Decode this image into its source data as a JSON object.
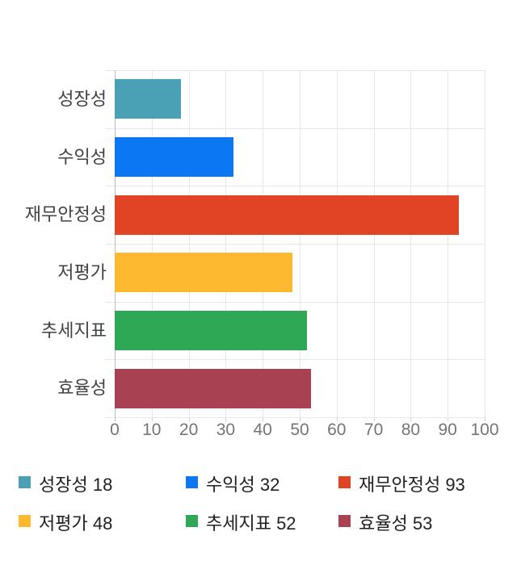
{
  "chart_data": {
    "type": "bar",
    "orientation": "horizontal",
    "title": "",
    "xlabel": "",
    "ylabel": "",
    "categories": [
      "성장성",
      "수익성",
      "재무안정성",
      "저평가",
      "추세지표",
      "효율성"
    ],
    "values": [
      18,
      32,
      93,
      48,
      52,
      53
    ],
    "colors": [
      "#4AA0B5",
      "#0B77F3",
      "#E04425",
      "#FDB92F",
      "#2FA856",
      "#A84152"
    ],
    "xlim": [
      0,
      100
    ],
    "x_ticks": [
      0,
      10,
      20,
      30,
      40,
      50,
      60,
      70,
      80,
      90,
      100
    ],
    "grid": true,
    "legend_position": "bottom"
  },
  "legend": {
    "items": [
      {
        "label": "성장성",
        "value": 18,
        "color": "#4AA0B5"
      },
      {
        "label": "수익성",
        "value": 32,
        "color": "#0B77F3"
      },
      {
        "label": "재무안정성",
        "value": 93,
        "color": "#E04425"
      },
      {
        "label": "저평가",
        "value": 48,
        "color": "#FDB92F"
      },
      {
        "label": "추세지표",
        "value": 52,
        "color": "#2FA856"
      },
      {
        "label": "효율성",
        "value": 53,
        "color": "#A84152"
      }
    ]
  },
  "styles": {
    "background": "#FFFFFF",
    "grid_color": "#E6E6E6",
    "axis_color": "#BDBDBD",
    "tick_stub_color": "#D0D0D0",
    "tick_label_color": "#757575",
    "category_label_color": "#424242",
    "legend_text_color": "#212121"
  }
}
